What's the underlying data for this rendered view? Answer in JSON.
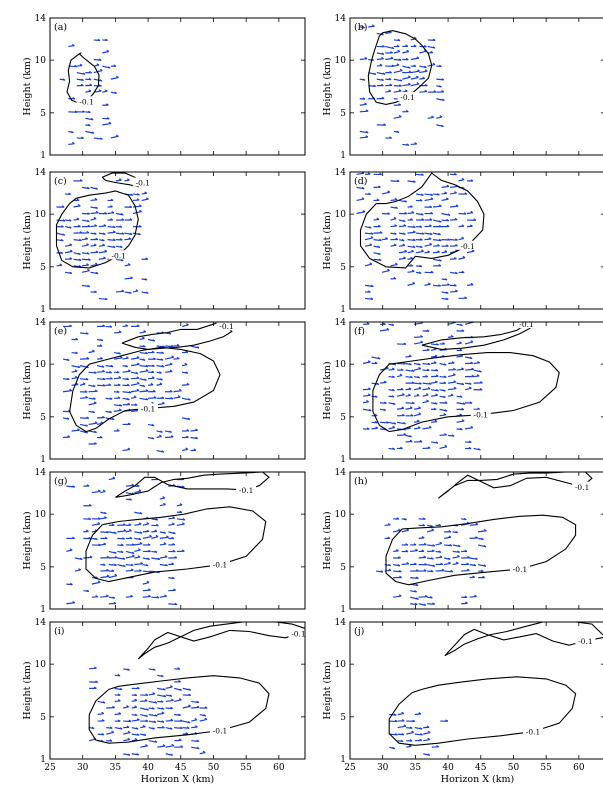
{
  "figure": {
    "xlabel": "Horizon X (km)",
    "ylabel": "Height (km)",
    "x_ticks": [
      "25",
      "30",
      "35",
      "40",
      "45",
      "50",
      "55",
      "60"
    ],
    "y_ticks": [
      "1",
      "5",
      "10",
      "14"
    ],
    "contour_label": "-0.1",
    "colors": {
      "vectors": "#1a3fd1",
      "contours": "#000000",
      "frame": "#000000"
    }
  },
  "chart_data": [
    {
      "type": "scatter",
      "panel": "(a)",
      "xlim": [
        25,
        64
      ],
      "ylim": [
        1,
        14
      ],
      "contour_level": -0.1,
      "contours": [
        {
          "x": [
            29.5,
            28.2,
            27.8,
            28.0,
            27.6,
            28.3,
            29.5,
            30.6,
            31.6,
            32.4,
            32.5,
            31.8,
            31.0,
            30.0,
            29.5,
            29.8,
            29.5
          ],
          "y": [
            10.6,
            10.0,
            9.0,
            8.0,
            7.0,
            6.2,
            5.9,
            6.1,
            6.8,
            7.6,
            8.6,
            9.4,
            9.8,
            10.3,
            10.6,
            10.7,
            10.6
          ]
        }
      ],
      "vector_region": {
        "x": [
          26.5,
          34.5
        ],
        "y": [
          2,
          12.5
        ]
      },
      "vector_direction": "rightward"
    },
    {
      "type": "scatter",
      "panel": "(b)",
      "xlim": [
        25,
        64
      ],
      "ylim": [
        1,
        14
      ],
      "contour_level": -0.1,
      "contours": [
        {
          "x": [
            29.5,
            28.8,
            28.3,
            27.8,
            28.0,
            29.0,
            30.5,
            32.0,
            33.8,
            35.5,
            37.0,
            37.5,
            37.0,
            36.0,
            35.0,
            33.5,
            31.5,
            30.0,
            29.5
          ],
          "y": [
            12.3,
            11.0,
            10.0,
            8.5,
            7.0,
            6.0,
            5.8,
            6.0,
            6.5,
            7.4,
            8.3,
            9.5,
            10.6,
            11.4,
            12.0,
            12.5,
            12.8,
            12.6,
            12.3
          ]
        }
      ],
      "vector_region": {
        "x": [
          26.5,
          38.5
        ],
        "y": [
          2,
          13.5
        ]
      },
      "vector_direction": "rightward"
    },
    {
      "type": "scatter",
      "panel": "(c)",
      "xlim": [
        25,
        64
      ],
      "ylim": [
        1,
        14
      ],
      "contour_level": -0.1,
      "contours": [
        {
          "x": [
            28.0,
            26.8,
            26.0,
            26.0,
            26.8,
            28.5,
            31.0,
            33.5,
            35.5,
            37.0,
            38.0,
            38.5,
            38.0,
            37.0,
            35.0,
            33.5,
            31.0,
            29.0,
            28.0
          ],
          "y": [
            11.0,
            10.0,
            9.0,
            7.0,
            5.6,
            5.0,
            4.9,
            5.4,
            6.1,
            7.0,
            8.0,
            9.5,
            10.8,
            11.8,
            12.2,
            12.0,
            11.8,
            11.5,
            11.0
          ]
        },
        {
          "x": [
            33.0,
            34.5,
            36.5,
            38.0,
            39.2,
            38.5,
            37.0,
            35.0,
            33.5,
            33.0
          ],
          "y": [
            13.5,
            13.9,
            13.9,
            13.5,
            13.0,
            12.6,
            12.8,
            13.0,
            13.2,
            13.5
          ]
        }
      ],
      "vector_region": {
        "x": [
          26,
          39
        ],
        "y": [
          2,
          13.6
        ]
      },
      "vector_direction": "rightward"
    },
    {
      "type": "scatter",
      "panel": "(d)",
      "xlim": [
        25,
        64
      ],
      "ylim": [
        1,
        14
      ],
      "contour_level": -0.1,
      "contours": [
        {
          "x": [
            29.0,
            27.5,
            26.6,
            26.6,
            28.0,
            30.5,
            33.5,
            35.0,
            37.5,
            40.0,
            43.0,
            45.3,
            45.5,
            44.5,
            43.0,
            41.0,
            39.0,
            37.5,
            36.0,
            34.0,
            32.0,
            30.5,
            29.0
          ],
          "y": [
            11.0,
            10.0,
            8.5,
            7.0,
            5.8,
            5.0,
            4.9,
            6.0,
            5.8,
            6.1,
            7.0,
            8.5,
            10.0,
            11.2,
            12.2,
            12.8,
            13.2,
            13.9,
            12.6,
            11.7,
            11.2,
            11.0,
            11.0
          ]
        }
      ],
      "vector_region": {
        "x": [
          26,
          43
        ],
        "y": [
          2,
          13.8
        ]
      },
      "vector_direction": "rightward"
    },
    {
      "type": "scatter",
      "panel": "(e)",
      "xlim": [
        25,
        64
      ],
      "ylim": [
        1,
        14
      ],
      "contour_level": -0.1,
      "contours": [
        {
          "x": [
            31.0,
            29.5,
            28.5,
            28.0,
            29.0,
            30.5,
            32.0,
            34.0,
            36.5,
            40.0,
            44.0,
            47.0,
            50.0,
            51.0,
            50.0,
            48.0,
            45.0,
            42.0,
            39.0,
            36.0,
            33.5,
            31.0
          ],
          "y": [
            10.0,
            9.0,
            7.5,
            5.5,
            4.2,
            3.6,
            3.9,
            4.8,
            5.6,
            5.8,
            6.0,
            6.4,
            7.5,
            9.0,
            10.3,
            11.0,
            11.4,
            11.6,
            11.3,
            10.8,
            10.4,
            10.0
          ]
        },
        {
          "x": [
            36.0,
            38.5,
            40.5,
            43.0,
            45.0,
            47.5,
            49.5,
            51.0,
            52.0,
            52.8,
            51.5,
            49.5,
            47.0,
            44.5,
            42.0,
            40.0,
            38.0,
            36.0
          ],
          "y": [
            12.0,
            12.6,
            12.8,
            13.0,
            13.3,
            13.3,
            13.7,
            14.0,
            13.6,
            13.1,
            12.6,
            12.2,
            11.8,
            11.6,
            11.5,
            11.4,
            11.6,
            12.0
          ]
        }
      ],
      "vector_region": {
        "x": [
          27,
          47
        ],
        "y": [
          1.8,
          13.8
        ]
      },
      "vector_direction": "rightward"
    },
    {
      "type": "scatter",
      "panel": "(f)",
      "xlim": [
        25,
        64
      ],
      "ylim": [
        1,
        14
      ],
      "contour_level": -0.1,
      "contours": [
        {
          "x": [
            31.0,
            29.5,
            28.5,
            28.5,
            29.5,
            31.0,
            33.0,
            36.0,
            40.0,
            45.0,
            50.0,
            54.0,
            56.5,
            57.0,
            55.5,
            53.0,
            49.5,
            46.0,
            42.0,
            38.0,
            34.5,
            31.0
          ],
          "y": [
            10.0,
            9.0,
            7.5,
            5.5,
            4.2,
            3.6,
            3.8,
            4.5,
            5.0,
            5.2,
            5.6,
            6.4,
            7.8,
            9.2,
            10.2,
            10.8,
            11.1,
            11.1,
            10.9,
            10.6,
            10.3,
            10.0
          ]
        },
        {
          "x": [
            36.0,
            39.0,
            42.0,
            45.5,
            48.0,
            50.5,
            52.0,
            52.5,
            51.0,
            48.5,
            45.5,
            42.0,
            39.0,
            36.0
          ],
          "y": [
            11.8,
            12.3,
            12.5,
            12.6,
            12.8,
            13.2,
            13.8,
            13.4,
            12.9,
            12.3,
            11.8,
            11.5,
            11.4,
            11.8
          ]
        }
      ],
      "vector_region": {
        "x": [
          27,
          45
        ],
        "y": [
          2,
          13.8
        ]
      },
      "vector_direction": "rightward"
    },
    {
      "type": "scatter",
      "panel": "(g)",
      "xlim": [
        25,
        64
      ],
      "ylim": [
        1,
        14
      ],
      "contour_level": -0.1,
      "contours": [
        {
          "x": [
            33.0,
            31.5,
            30.5,
            30.5,
            32.0,
            34.0,
            37.0,
            41.0,
            46.0,
            51.0,
            55.0,
            57.5,
            58.0,
            56.0,
            52.5,
            49.0,
            45.5,
            42.0,
            38.5,
            35.5,
            33.0
          ],
          "y": [
            9.0,
            8.0,
            6.5,
            4.8,
            3.9,
            3.6,
            4.0,
            4.5,
            4.8,
            5.2,
            6.0,
            7.6,
            9.3,
            10.3,
            10.7,
            10.5,
            10.0,
            9.7,
            9.5,
            9.3,
            9.0
          ]
        },
        {
          "x": [
            35.0,
            36.5,
            38.0,
            39.5,
            41.0,
            43.0,
            46.0,
            49.0,
            52.0,
            55.0,
            57.0,
            58.5,
            57.5,
            54.5,
            51.0,
            48.5,
            46.0,
            44.0,
            42.0,
            40.0,
            37.0,
            35.0
          ],
          "y": [
            11.6,
            12.2,
            12.7,
            13.5,
            13.5,
            12.8,
            12.4,
            12.4,
            12.4,
            12.3,
            12.7,
            13.5,
            14.0,
            13.9,
            13.8,
            13.7,
            13.4,
            13.3,
            13.0,
            12.2,
            11.8,
            11.6
          ]
        }
      ],
      "vector_region": {
        "x": [
          27.5,
          45
        ],
        "y": [
          1.5,
          13.8
        ]
      },
      "vector_direction": "rightward"
    },
    {
      "type": "scatter",
      "panel": "(h)",
      "xlim": [
        25,
        64
      ],
      "ylim": [
        1,
        14
      ],
      "contour_level": -0.1,
      "contours": [
        {
          "x": [
            33.0,
            31.5,
            30.5,
            30.5,
            32.0,
            34.0,
            37.0,
            41.0,
            46.0,
            51.0,
            55.0,
            58.0,
            59.5,
            59.5,
            57.5,
            54.5,
            51.0,
            47.0,
            43.0,
            39.0,
            35.5,
            33.0
          ],
          "y": [
            8.6,
            7.6,
            6.0,
            4.4,
            3.6,
            3.3,
            3.7,
            4.2,
            4.5,
            4.8,
            5.5,
            6.7,
            8.0,
            9.0,
            9.7,
            9.9,
            9.8,
            9.5,
            9.1,
            8.8,
            8.7,
            8.6
          ]
        },
        {
          "x": [
            38.5,
            40.0,
            41.5,
            43.0,
            45.0,
            47.0,
            49.5,
            52.0,
            55.0,
            58.0,
            60.5,
            62.0,
            61.0,
            58.0,
            55.0,
            52.5,
            50.0,
            47.5,
            45.0,
            43.0,
            41.0,
            39.5,
            38.5
          ],
          "y": [
            11.5,
            12.2,
            13.0,
            13.7,
            13.1,
            12.5,
            12.7,
            13.4,
            13.5,
            13.0,
            12.6,
            13.4,
            14.0,
            14.0,
            13.9,
            13.9,
            13.8,
            13.3,
            13.2,
            13.2,
            12.7,
            12.0,
            11.5
          ]
        }
      ],
      "vector_region": {
        "x": [
          29,
          45
        ],
        "y": [
          1.5,
          9.8
        ]
      },
      "vector_direction": "rightward"
    },
    {
      "type": "scatter",
      "panel": "(i)",
      "xlim": [
        25,
        64
      ],
      "ylim": [
        1,
        14
      ],
      "contour_level": -0.1,
      "contours": [
        {
          "x": [
            34.0,
            32.0,
            31.0,
            31.0,
            32.0,
            34.0,
            37.0,
            41.0,
            46.0,
            51.0,
            55.5,
            58.0,
            58.5,
            57.0,
            54.0,
            50.0,
            46.0,
            42.0,
            38.0,
            35.5,
            34.0
          ],
          "y": [
            7.6,
            6.5,
            5.2,
            3.8,
            2.8,
            2.5,
            2.6,
            3.0,
            3.3,
            3.7,
            4.5,
            5.8,
            7.2,
            8.2,
            8.7,
            8.9,
            8.7,
            8.4,
            8.1,
            7.9,
            7.6
          ]
        },
        {
          "x": [
            38.5,
            40.0,
            41.0,
            43.0,
            45.0,
            47.0,
            49.5,
            52.5,
            55.5,
            58.5,
            61.0,
            63.0,
            64.0,
            62.0,
            59.5,
            57.0,
            54.5,
            52.0,
            49.5,
            47.0,
            45.0,
            43.0,
            41.0,
            39.5,
            38.5
          ],
          "y": [
            10.5,
            11.5,
            12.3,
            13.0,
            12.6,
            12.2,
            12.6,
            13.2,
            13.1,
            12.7,
            12.5,
            12.9,
            13.4,
            13.8,
            14.0,
            14.0,
            14.0,
            13.8,
            13.6,
            13.2,
            12.6,
            12.0,
            11.6,
            11.0,
            10.5
          ]
        }
      ],
      "vector_region": {
        "x": [
          31,
          49
        ],
        "y": [
          1.5,
          10
        ]
      },
      "vector_direction": "rightward"
    },
    {
      "type": "scatter",
      "panel": "(j)",
      "xlim": [
        25,
        64
      ],
      "ylim": [
        1,
        14
      ],
      "contour_level": -0.1,
      "contours": [
        {
          "x": [
            34.5,
            32.5,
            31.0,
            31.0,
            32.5,
            35.0,
            38.5,
            43.0,
            48.0,
            53.0,
            57.0,
            59.0,
            59.5,
            58.0,
            55.0,
            50.5,
            46.0,
            42.0,
            38.5,
            36.0,
            34.5
          ],
          "y": [
            7.3,
            6.2,
            4.8,
            3.4,
            2.5,
            2.3,
            2.5,
            2.9,
            3.2,
            3.6,
            4.4,
            5.8,
            7.2,
            8.0,
            8.6,
            8.8,
            8.6,
            8.3,
            8.0,
            7.6,
            7.3
          ]
        },
        {
          "x": [
            39.5,
            41.0,
            42.5,
            44.0,
            46.0,
            48.5,
            51.0,
            53.5,
            56.0,
            58.5,
            61.0,
            63.5,
            64.0,
            62.0,
            59.5,
            57.0,
            54.5,
            52.0,
            49.0,
            46.5,
            44.5,
            42.5,
            41.0,
            39.5
          ],
          "y": [
            10.8,
            11.8,
            12.8,
            13.3,
            12.8,
            12.3,
            12.6,
            12.9,
            12.2,
            11.8,
            12.2,
            12.5,
            12.6,
            13.8,
            14.0,
            14.0,
            14.0,
            13.6,
            13.1,
            12.8,
            12.4,
            11.9,
            11.3,
            10.8
          ]
        }
      ],
      "vector_region": {
        "x": [
          31,
          39
        ],
        "y": [
          1.5,
          5.5
        ]
      },
      "vector_direction": "rightward"
    }
  ]
}
